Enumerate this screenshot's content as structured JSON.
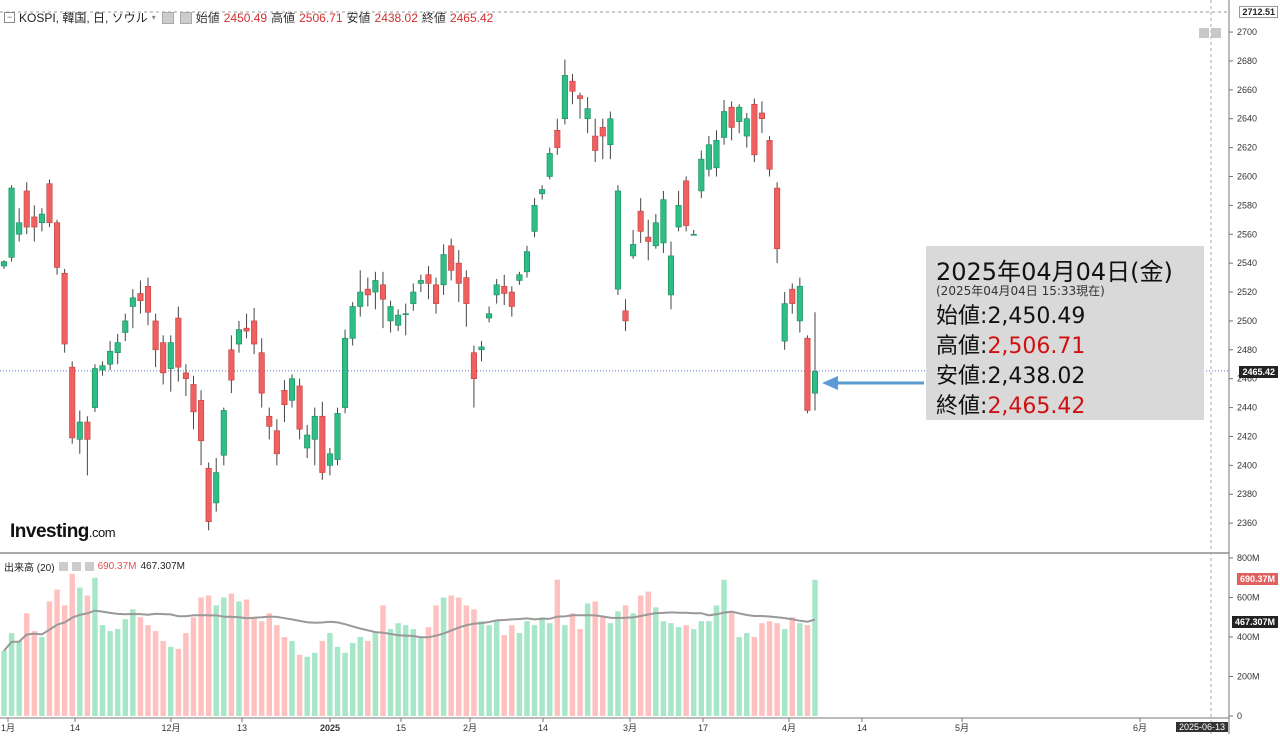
{
  "header": {
    "symbol": "KOSPI, 韓国, 日, ソウル",
    "open_label": "始値",
    "open": "2450.49",
    "high_label": "高値",
    "high": "2506.71",
    "low_label": "安値",
    "low": "2438.02",
    "close_label": "終値",
    "close": "2465.42"
  },
  "volume_header": {
    "label": "出来高 (20)",
    "value": "690.37M",
    "ma": "467.307M"
  },
  "info_box": {
    "date": "2025年04月04日(金)",
    "as_of": "(2025年04月04日 15:33現在)",
    "rows": [
      {
        "label": "始値",
        "value": "2,450.49",
        "color": "#111111"
      },
      {
        "label": "高値",
        "value": "2,506.71",
        "color": "#d01010"
      },
      {
        "label": "安値",
        "value": "2,438.02",
        "color": "#111111"
      },
      {
        "label": "終値",
        "value": "2,465.42",
        "color": "#d01010"
      }
    ]
  },
  "logo": {
    "main": "Investing",
    "suffix": ".com"
  },
  "price_tags": {
    "top": "2712.51",
    "current": "2465.42",
    "vol_current": "690.37M",
    "vol_ma": "467.307M"
  },
  "date_tag": "2025-06-13",
  "colors": {
    "up": "#26a69a",
    "up_fill": "#2ebd85",
    "down": "#ef5350",
    "down_fill": "#f06060",
    "vol_up": "#a8e6c8",
    "vol_down": "#ffc0c0",
    "ma": "#999999",
    "arrow": "#5b9bd5"
  },
  "chart_data": {
    "type": "candlestick",
    "title": "KOSPI, 韓国, 日, ソウル",
    "price_axis": {
      "min": 2340,
      "max": 2712.51,
      "ticks": [
        2360,
        2380,
        2400,
        2420,
        2440,
        2460,
        2480,
        2500,
        2520,
        2540,
        2560,
        2580,
        2600,
        2620,
        2640,
        2660,
        2680,
        2700
      ]
    },
    "volume_axis": {
      "min": 0,
      "max": 800,
      "unit": "M",
      "ticks": [
        "0",
        "200M",
        "400M",
        "600M",
        "800M"
      ]
    },
    "x_labels": [
      "1月",
      "14",
      "12月",
      "13",
      "2025",
      "15",
      "2月",
      "14",
      "3月",
      "17",
      "4月",
      "14",
      "5月",
      "6月"
    ],
    "candles": [
      [
        2538,
        2541,
        2536,
        2542,
        330
      ],
      [
        2544,
        2592,
        2541,
        2594,
        420
      ],
      [
        2560,
        2568,
        2555,
        2578,
        380
      ],
      [
        2590,
        2565,
        2560,
        2596,
        520
      ],
      [
        2572,
        2565,
        2555,
        2580,
        430
      ],
      [
        2568,
        2574,
        2562,
        2578,
        400
      ],
      [
        2595,
        2568,
        2565,
        2598,
        580
      ],
      [
        2568,
        2537,
        2532,
        2570,
        640
      ],
      [
        2533,
        2484,
        2478,
        2536,
        560
      ],
      [
        2468,
        2419,
        2415,
        2472,
        720
      ],
      [
        2418,
        2430,
        2408,
        2438,
        650
      ],
      [
        2430,
        2418,
        2393,
        2434,
        610
      ],
      [
        2440,
        2467,
        2437,
        2470,
        700
      ],
      [
        2466,
        2469,
        2462,
        2472,
        460
      ],
      [
        2470,
        2479,
        2466,
        2486,
        430
      ],
      [
        2478,
        2485,
        2470,
        2491,
        440
      ],
      [
        2492,
        2500,
        2486,
        2505,
        490
      ],
      [
        2510,
        2516,
        2495,
        2522,
        540
      ],
      [
        2519,
        2514,
        2505,
        2528,
        500
      ],
      [
        2524,
        2506,
        2497,
        2530,
        460
      ],
      [
        2500,
        2480,
        2468,
        2505,
        430
      ],
      [
        2485,
        2464,
        2456,
        2490,
        380
      ],
      [
        2467,
        2485,
        2451,
        2490,
        350
      ],
      [
        2502,
        2468,
        2458,
        2510,
        340
      ],
      [
        2464,
        2460,
        2448,
        2470,
        420
      ],
      [
        2456,
        2437,
        2425,
        2462,
        500
      ],
      [
        2445,
        2417,
        2400,
        2452,
        600
      ],
      [
        2398,
        2361,
        2355,
        2402,
        610
      ],
      [
        2374,
        2395,
        2368,
        2405,
        560
      ],
      [
        2407,
        2438,
        2400,
        2440,
        600
      ],
      [
        2480,
        2459,
        2450,
        2490,
        620
      ],
      [
        2484,
        2494,
        2478,
        2500,
        580
      ],
      [
        2495,
        2493,
        2488,
        2505,
        590
      ],
      [
        2500,
        2484,
        2477,
        2509,
        500
      ],
      [
        2478,
        2450,
        2440,
        2488,
        480
      ],
      [
        2434,
        2427,
        2418,
        2440,
        520
      ],
      [
        2424,
        2408,
        2400,
        2432,
        460
      ],
      [
        2452,
        2442,
        2430,
        2459,
        400
      ],
      [
        2445,
        2460,
        2440,
        2463,
        380
      ],
      [
        2455,
        2425,
        2418,
        2460,
        310
      ],
      [
        2412,
        2421,
        2405,
        2428,
        300
      ],
      [
        2418,
        2434,
        2400,
        2440,
        320
      ],
      [
        2434,
        2395,
        2390,
        2444,
        380
      ],
      [
        2400,
        2408,
        2393,
        2412,
        420
      ],
      [
        2404,
        2436,
        2400,
        2440,
        350
      ],
      [
        2440,
        2488,
        2436,
        2494,
        320
      ],
      [
        2488,
        2510,
        2483,
        2513,
        370
      ],
      [
        2510,
        2520,
        2503,
        2535,
        400
      ],
      [
        2522,
        2518,
        2510,
        2530,
        380
      ],
      [
        2520,
        2528,
        2508,
        2534,
        420
      ],
      [
        2525,
        2515,
        2495,
        2534,
        560
      ],
      [
        2500,
        2510,
        2492,
        2514,
        440
      ],
      [
        2497,
        2504,
        2493,
        2508,
        470
      ],
      [
        2505,
        2505,
        2490,
        2512,
        460
      ],
      [
        2512,
        2520,
        2507,
        2526,
        440
      ],
      [
        2526,
        2528,
        2520,
        2532,
        400
      ],
      [
        2532,
        2526,
        2515,
        2538,
        450
      ],
      [
        2525,
        2512,
        2505,
        2530,
        560
      ],
      [
        2525,
        2546,
        2518,
        2553,
        600
      ],
      [
        2552,
        2535,
        2528,
        2557,
        610
      ],
      [
        2540,
        2526,
        2513,
        2549,
        600
      ],
      [
        2530,
        2512,
        2496,
        2535,
        560
      ],
      [
        2478,
        2460,
        2440,
        2483,
        540
      ],
      [
        2480,
        2482,
        2472,
        2486,
        480
      ],
      [
        2502,
        2505,
        2499,
        2510,
        460
      ],
      [
        2518,
        2525,
        2512,
        2529,
        480
      ],
      [
        2524,
        2519,
        2511,
        2532,
        410
      ],
      [
        2520,
        2510,
        2503,
        2524,
        460
      ],
      [
        2528,
        2532,
        2525,
        2534,
        420
      ],
      [
        2534,
        2548,
        2530,
        2552,
        480
      ],
      [
        2562,
        2580,
        2558,
        2585,
        460
      ],
      [
        2588,
        2591,
        2584,
        2594,
        500
      ],
      [
        2600,
        2616,
        2598,
        2620,
        470
      ],
      [
        2632,
        2620,
        2615,
        2640,
        690
      ],
      [
        2640,
        2670,
        2636,
        2681,
        460
      ],
      [
        2666,
        2659,
        2650,
        2671,
        520
      ],
      [
        2656,
        2654,
        2640,
        2658,
        440
      ],
      [
        2640,
        2647,
        2630,
        2655,
        570
      ],
      [
        2628,
        2618,
        2610,
        2640,
        580
      ],
      [
        2634,
        2628,
        2612,
        2640,
        500
      ],
      [
        2622,
        2640,
        2612,
        2645,
        470
      ],
      [
        2522,
        2590,
        2518,
        2594,
        530
      ],
      [
        2507,
        2500,
        2493,
        2515,
        560
      ],
      [
        2545,
        2553,
        2543,
        2563,
        520
      ],
      [
        2576,
        2562,
        2554,
        2585,
        610
      ],
      [
        2558,
        2555,
        2542,
        2570,
        630
      ],
      [
        2552,
        2568,
        2550,
        2574,
        550
      ],
      [
        2554,
        2584,
        2547,
        2590,
        480
      ],
      [
        2518,
        2545,
        2508,
        2555,
        470
      ],
      [
        2565,
        2580,
        2562,
        2590,
        450
      ],
      [
        2597,
        2566,
        2562,
        2600,
        460
      ],
      [
        2560,
        2560,
        2560,
        2563,
        440
      ],
      [
        2590,
        2612,
        2585,
        2618,
        480
      ],
      [
        2605,
        2622,
        2600,
        2628,
        480
      ],
      [
        2606,
        2625,
        2600,
        2632,
        560
      ],
      [
        2627,
        2645,
        2622,
        2653,
        690
      ],
      [
        2648,
        2634,
        2625,
        2652,
        530
      ],
      [
        2638,
        2648,
        2630,
        2650,
        400
      ],
      [
        2628,
        2640,
        2620,
        2644,
        420
      ],
      [
        2650,
        2615,
        2610,
        2654,
        400
      ],
      [
        2644,
        2640,
        2630,
        2652,
        470
      ],
      [
        2625,
        2605,
        2600,
        2628,
        480
      ],
      [
        2592,
        2550,
        2540,
        2596,
        470
      ],
      [
        2486,
        2512,
        2480,
        2520,
        440
      ],
      [
        2522,
        2512,
        2505,
        2526,
        500
      ],
      [
        2500,
        2524,
        2492,
        2530,
        470
      ],
      [
        2488,
        2438,
        2436,
        2490,
        460
      ],
      [
        2450,
        2465,
        2438,
        2506,
        690
      ]
    ]
  }
}
